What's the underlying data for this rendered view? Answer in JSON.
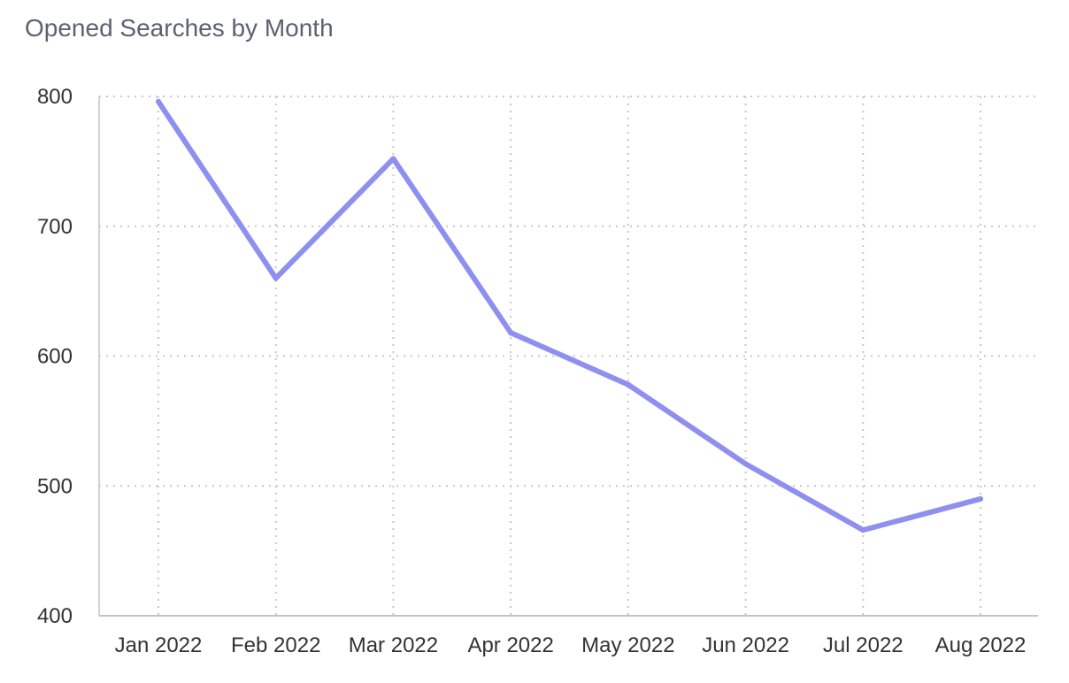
{
  "chart_data": {
    "type": "line",
    "title": "Opened Searches by Month",
    "xlabel": "",
    "ylabel": "",
    "categories": [
      "Jan 2022",
      "Feb 2022",
      "Mar 2022",
      "Apr 2022",
      "May 2022",
      "Jun 2022",
      "Jul 2022",
      "Aug 2022"
    ],
    "series": [
      {
        "values": [
          796,
          660,
          752,
          618,
          578,
          517,
          466,
          490
        ],
        "color": "#8f8fef"
      }
    ],
    "ylim": [
      400,
      800
    ],
    "yticks": [
      400,
      500,
      600,
      700,
      800
    ],
    "grid": true,
    "legend": "none"
  }
}
